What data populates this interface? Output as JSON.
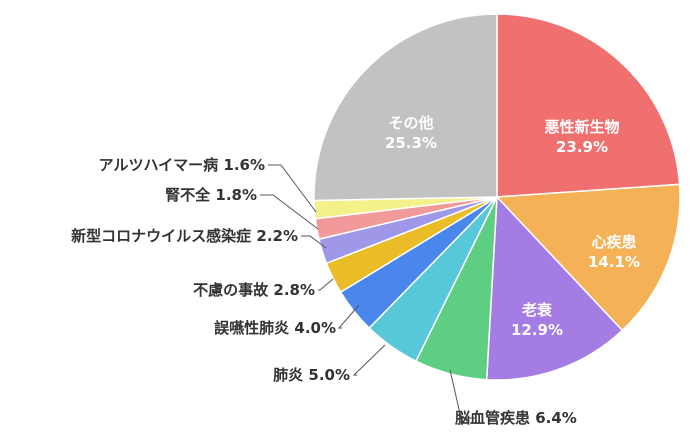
{
  "chart_data": {
    "type": "pie",
    "title": "",
    "start": "top",
    "direction": "clockwise",
    "slices": [
      {
        "label": "悪性新生物",
        "value": 23.9,
        "display": "23.9%",
        "color": "#F07070",
        "placement": "inside"
      },
      {
        "label": "心疾患",
        "value": 14.1,
        "display": "14.1%",
        "color": "#F4B155",
        "placement": "inside"
      },
      {
        "label": "老衰",
        "value": 12.9,
        "display": "12.9%",
        "color": "#A57CE3",
        "placement": "inside"
      },
      {
        "label": "脳血管疾患",
        "value": 6.4,
        "display": "6.4%",
        "color": "#5ECF82",
        "placement": "outside"
      },
      {
        "label": "肺炎",
        "value": 5.0,
        "display": "5.0%",
        "color": "#57C8DA",
        "placement": "outside"
      },
      {
        "label": "誤嚥性肺炎",
        "value": 4.0,
        "display": "4.0%",
        "color": "#4A87EC",
        "placement": "outside"
      },
      {
        "label": "不慮の事故",
        "value": 2.8,
        "display": "2.8%",
        "color": "#EABC28",
        "placement": "outside"
      },
      {
        "label": "新型コロナウイルス感染症",
        "value": 2.2,
        "display": "2.2%",
        "color": "#9F98E8",
        "placement": "outside"
      },
      {
        "label": "腎不全",
        "value": 1.8,
        "display": "1.8%",
        "color": "#F29A9A",
        "placement": "outside"
      },
      {
        "label": "アルツハイマー病",
        "value": 1.6,
        "display": "1.6%",
        "color": "#F4F08A",
        "placement": "outside"
      },
      {
        "label": "その他",
        "value": 25.3,
        "display": "25.3%",
        "color": "#C2C2C2",
        "placement": "inside"
      }
    ]
  }
}
